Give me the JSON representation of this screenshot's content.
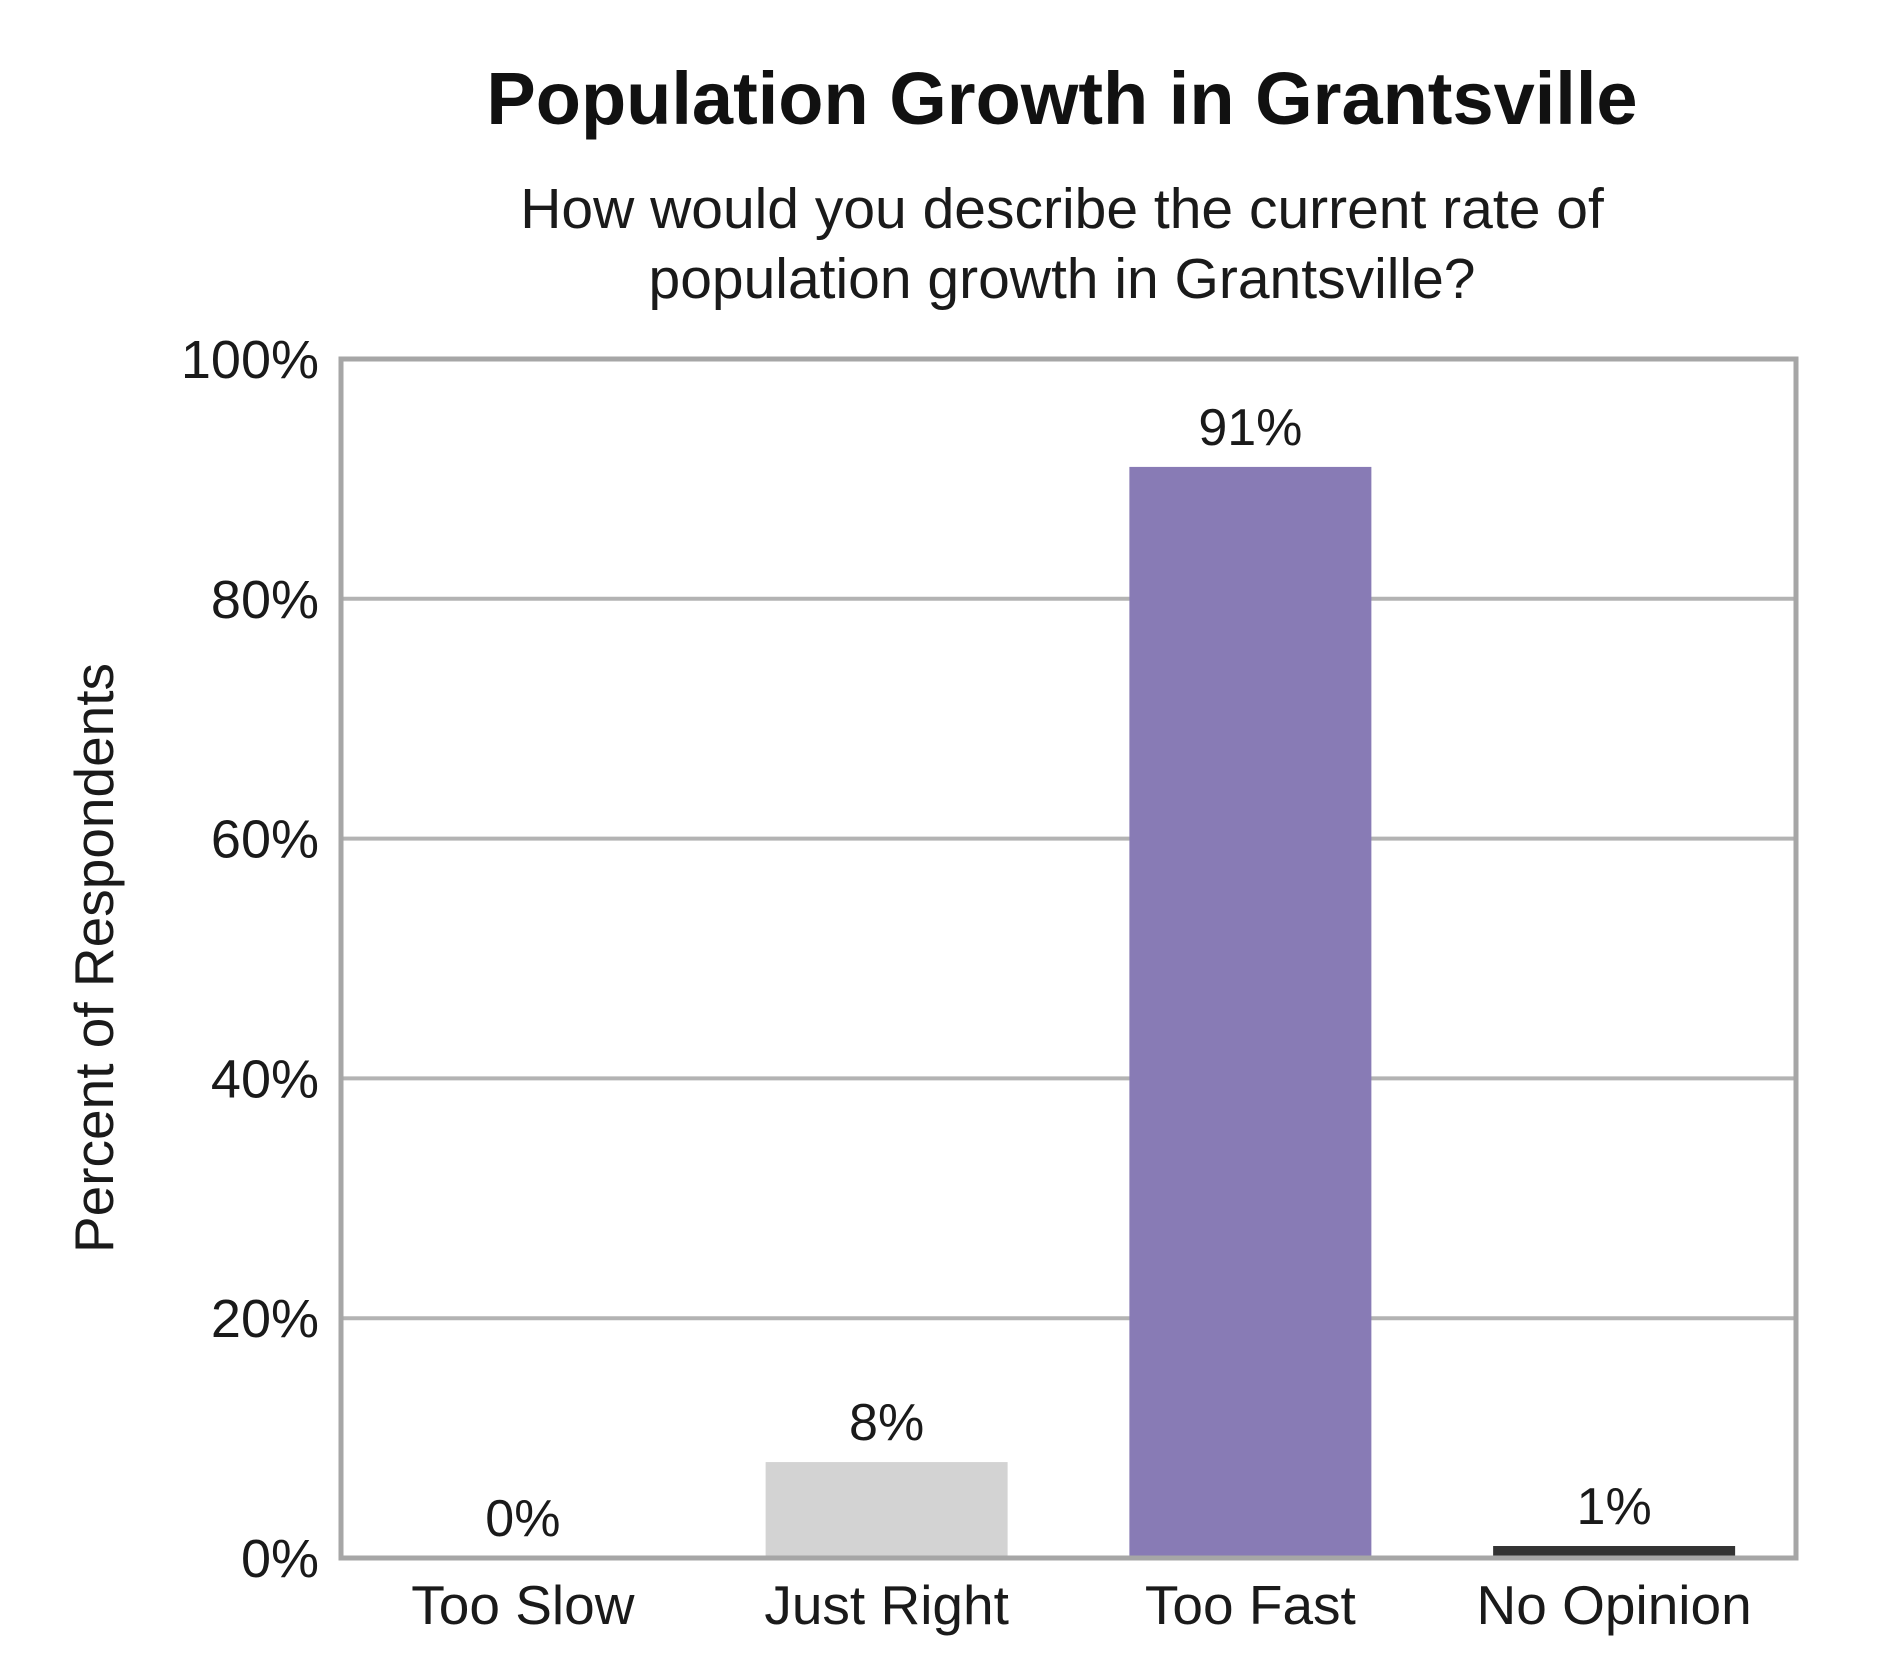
{
  "chart_data": {
    "type": "bar",
    "title": "Population Growth in Grantsville",
    "subtitle_lines": [
      "How would you describe the current rate of",
      "population growth in Grantsville?"
    ],
    "ylabel": "Percent of Respondents",
    "xlabel": "",
    "ylim": [
      0,
      100
    ],
    "yticks": [
      0,
      20,
      40,
      60,
      80,
      100
    ],
    "ytick_labels": [
      "0%",
      "20%",
      "40%",
      "60%",
      "80%",
      "100%"
    ],
    "grid": true,
    "categories": [
      "Too Slow",
      "Just Right",
      "Too Fast",
      "No Opinion"
    ],
    "values": [
      0,
      8,
      91,
      1
    ],
    "data_labels": [
      "0%",
      "8%",
      "91%",
      "1%"
    ],
    "bar_colors": [
      "#6f9fd1",
      "#d3d3d3",
      "#887bb5",
      "#333333"
    ],
    "frame_color": "#a6a6a6",
    "grid_color": "#b3b3b3"
  }
}
